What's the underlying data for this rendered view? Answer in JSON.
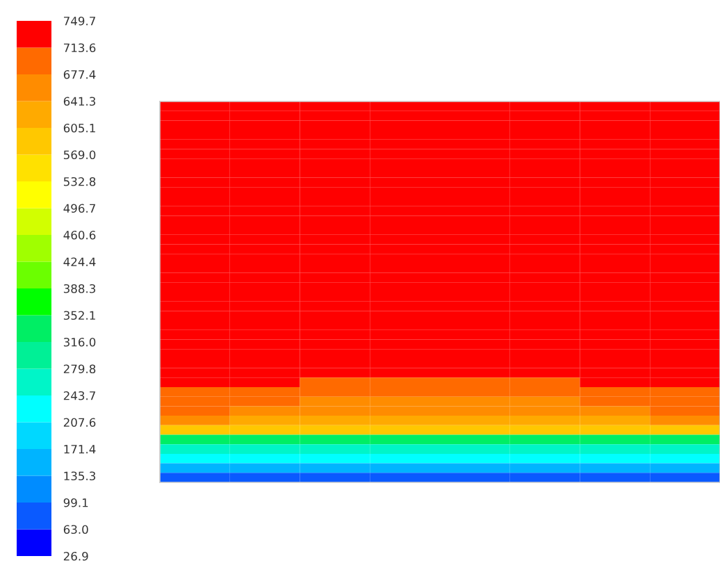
{
  "chart_data": {
    "type": "heatmap",
    "categories": [
      null,
      null,
      null,
      null,
      null,
      null,
      null,
      null
    ],
    "y_categories": [
      null,
      null,
      null,
      null,
      null,
      null,
      null,
      null,
      null,
      null,
      null,
      null,
      null,
      null,
      null,
      null,
      null,
      null,
      null,
      null,
      null,
      null,
      null,
      null,
      null,
      null,
      null,
      null,
      null,
      null,
      null,
      null,
      null,
      null,
      null,
      null,
      null,
      null,
      null,
      null
    ],
    "cells": [
      [
        731.7,
        731.7,
        731.7,
        731.7,
        731.7,
        731.7,
        731.7,
        731.7
      ],
      [
        731.7,
        731.7,
        731.7,
        731.7,
        731.7,
        731.7,
        731.7,
        731.7
      ],
      [
        731.7,
        731.7,
        731.7,
        731.7,
        731.7,
        731.7,
        731.7,
        731.7
      ],
      [
        731.7,
        731.7,
        731.7,
        731.7,
        731.7,
        731.7,
        731.7,
        731.7
      ],
      [
        731.7,
        731.7,
        731.7,
        731.7,
        731.7,
        731.7,
        731.7,
        731.7
      ],
      [
        731.7,
        731.7,
        731.7,
        731.7,
        731.7,
        731.7,
        731.7,
        731.7
      ],
      [
        731.7,
        731.7,
        731.7,
        731.7,
        731.7,
        731.7,
        731.7,
        731.7
      ],
      [
        731.7,
        731.7,
        731.7,
        731.7,
        731.7,
        731.7,
        731.7,
        731.7
      ],
      [
        731.7,
        731.7,
        731.7,
        731.7,
        731.7,
        731.7,
        731.7,
        731.7
      ],
      [
        731.7,
        731.7,
        731.7,
        731.7,
        731.7,
        731.7,
        731.7,
        731.7
      ],
      [
        731.7,
        731.7,
        731.7,
        731.7,
        731.7,
        731.7,
        731.7,
        731.7
      ],
      [
        731.7,
        731.7,
        731.7,
        731.7,
        731.7,
        731.7,
        731.7,
        731.7
      ],
      [
        731.7,
        731.7,
        731.7,
        731.7,
        731.7,
        731.7,
        731.7,
        731.7
      ],
      [
        731.7,
        731.7,
        731.7,
        731.7,
        731.7,
        731.7,
        731.7,
        731.7
      ],
      [
        731.7,
        731.7,
        731.7,
        731.7,
        731.7,
        731.7,
        731.7,
        731.7
      ],
      [
        731.7,
        731.7,
        731.7,
        731.7,
        731.7,
        731.7,
        731.7,
        731.7
      ],
      [
        731.7,
        731.7,
        731.7,
        731.7,
        731.7,
        731.7,
        731.7,
        731.7
      ],
      [
        731.7,
        731.7,
        731.7,
        731.7,
        731.7,
        731.7,
        731.7,
        731.7
      ],
      [
        731.7,
        731.7,
        731.7,
        731.7,
        731.7,
        731.7,
        731.7,
        731.7
      ],
      [
        731.7,
        731.7,
        731.7,
        731.7,
        731.7,
        731.7,
        731.7,
        731.7
      ],
      [
        731.7,
        731.7,
        731.7,
        731.7,
        731.7,
        731.7,
        731.7,
        731.7
      ],
      [
        731.7,
        731.7,
        731.7,
        731.7,
        731.7,
        731.7,
        731.7,
        731.7
      ],
      [
        731.7,
        731.7,
        731.7,
        731.7,
        731.7,
        731.7,
        731.7,
        731.7
      ],
      [
        731.7,
        731.7,
        731.7,
        731.7,
        731.7,
        731.7,
        731.7,
        731.7
      ],
      [
        731.7,
        731.7,
        731.7,
        731.7,
        731.7,
        731.7,
        731.7,
        731.7
      ],
      [
        731.7,
        731.7,
        731.7,
        731.7,
        731.7,
        731.7,
        731.7,
        731.7
      ],
      [
        731.7,
        731.7,
        731.7,
        731.7,
        731.7,
        731.7,
        731.7,
        731.7
      ],
      [
        731.7,
        731.7,
        731.7,
        731.7,
        731.7,
        731.7,
        731.7,
        731.7
      ],
      [
        731.7,
        731.7,
        731.7,
        731.7,
        731.7,
        731.7,
        731.7,
        731.7
      ],
      [
        731.7,
        731.7,
        695.5,
        695.5,
        695.5,
        695.5,
        731.7,
        731.7
      ],
      [
        695.5,
        695.5,
        695.5,
        695.5,
        695.5,
        695.5,
        695.5,
        695.5
      ],
      [
        695.5,
        695.5,
        659.4,
        659.4,
        659.4,
        659.4,
        695.5,
        695.5
      ],
      [
        695.5,
        659.4,
        659.4,
        659.4,
        659.4,
        659.4,
        659.4,
        695.5
      ],
      [
        659.4,
        623.2,
        623.2,
        623.2,
        623.2,
        623.2,
        623.2,
        659.4
      ],
      [
        587.0,
        587.0,
        587.0,
        587.0,
        587.0,
        587.0,
        587.0,
        587.0
      ],
      [
        334.1,
        334.1,
        334.1,
        334.1,
        334.1,
        334.1,
        334.1,
        334.1
      ],
      [
        261.8,
        261.8,
        261.8,
        261.8,
        261.8,
        261.8,
        261.8,
        261.8
      ],
      [
        225.7,
        225.7,
        225.7,
        225.7,
        225.7,
        225.7,
        225.7,
        225.7
      ],
      [
        153.4,
        153.4,
        153.4,
        153.4,
        153.4,
        153.4,
        153.4,
        153.4
      ],
      [
        81.0,
        81.0,
        81.0,
        81.0,
        81.0,
        81.0,
        81.0,
        81.0
      ]
    ],
    "clim": [
      26.9,
      749.7
    ],
    "cticks": [
      26.9,
      {
        "value": 63,
        "label": "63.0"
      },
      99.1,
      135.3,
      171.4,
      207.6,
      243.7,
      279.8,
      {
        "value": 316,
        "label": "316.0"
      },
      352.1,
      388.3,
      424.4,
      460.6,
      496.7,
      532.8,
      {
        "value": 569,
        "label": "569.0"
      },
      605.1,
      641.3,
      677.4,
      713.6,
      749.7
    ],
    "colors": [
      "#0000ff",
      "#0a5aff",
      "#008cff",
      "#00b4ff",
      "#00d8ff",
      "#00ffff",
      "#00f5c8",
      "#00f096",
      "#00ee64",
      "#00ff00",
      "#6bff00",
      "#a0ff00",
      "#d2ff00",
      "#ffff00",
      "#ffe100",
      "#ffc800",
      "#ffaa00",
      "#ff8c00",
      "#ff6a00",
      "#ff0000"
    ]
  }
}
